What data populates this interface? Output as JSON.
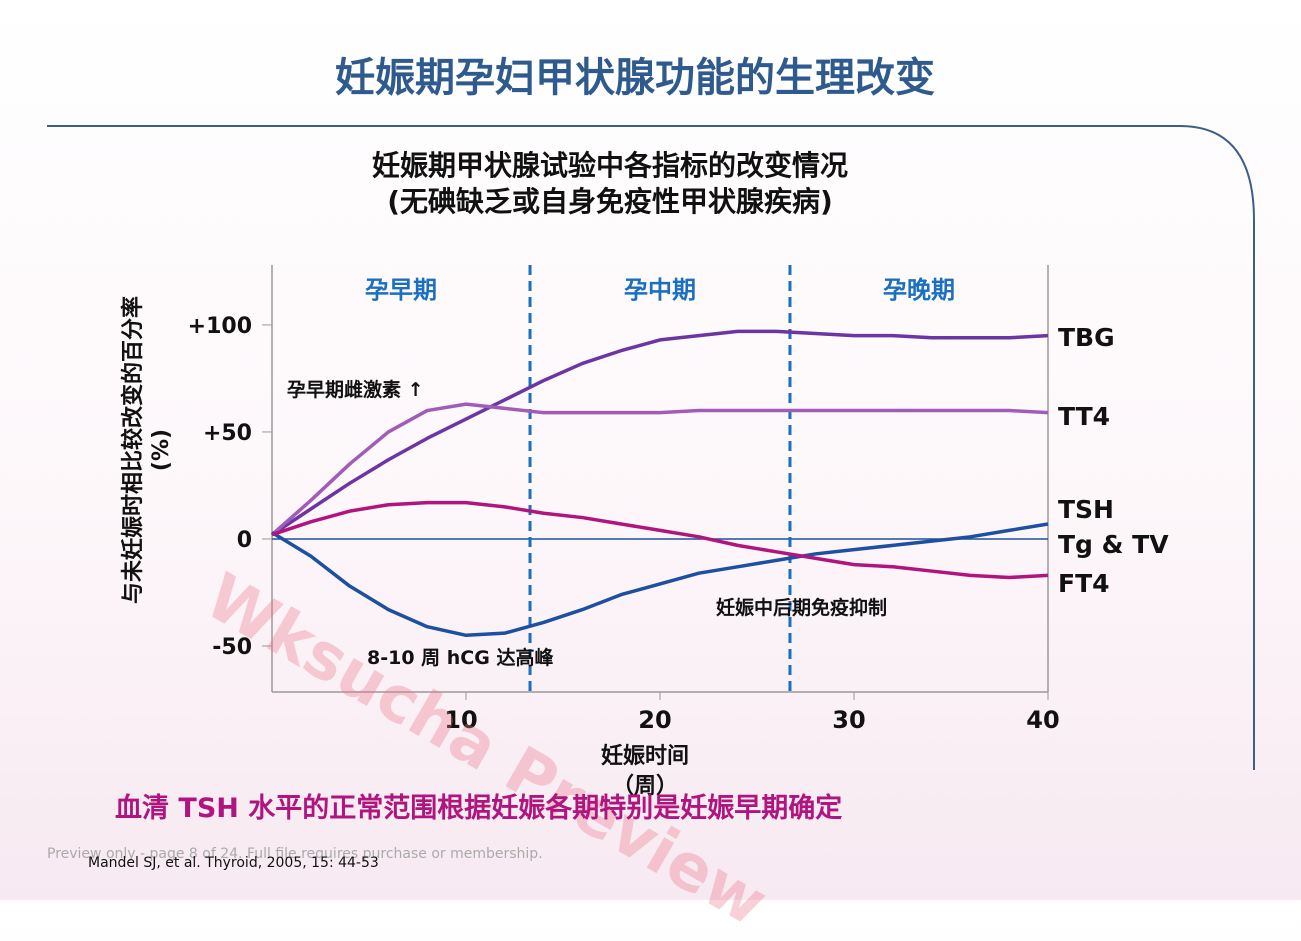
{
  "slide": {
    "title": "妊娠期孕妇甲状腺功能的生理改变",
    "chart_title": [
      "妊娠期甲状腺试验中各指标的改变情况",
      "(无碘缺乏或自身免疫性甲状腺疾病)"
    ],
    "footnote": "血清 TSH 水平的正常范围根据妊娠各期特别是妊娠早期确定",
    "citation": "Mandel SJ, et al.  Thyroid, 2005, 15: 44-53",
    "watermark": "Wksucha Preview",
    "notice": "Preview only - page 8 of 24. Full file requires purchase or membership."
  },
  "chart_data": {
    "type": "line",
    "y_label": "与未妊娠时相比较改变的百分率 (%)",
    "x_label": "妊娠时间（周）",
    "x": [
      0,
      2,
      4,
      6,
      8,
      10,
      12,
      14,
      16,
      18,
      20,
      22,
      24,
      26,
      28,
      30,
      32,
      34,
      36,
      38,
      40
    ],
    "series": [
      {
        "name": "TBG",
        "color": "#6b35a3",
        "values": [
          2,
          14,
          26,
          37,
          47,
          56,
          65,
          74,
          82,
          88,
          93,
          95,
          97,
          97,
          96,
          95,
          95,
          94,
          94,
          94,
          95
        ]
      },
      {
        "name": "TT4",
        "color": "#a05cb8",
        "values": [
          2,
          18,
          35,
          50,
          60,
          63,
          61,
          59,
          59,
          59,
          59,
          60,
          60,
          60,
          60,
          60,
          60,
          60,
          60,
          60,
          59
        ]
      },
      {
        "name": "TSH",
        "color": "#1d50a0",
        "values": [
          3,
          -8,
          -22,
          -33,
          -41,
          -45,
          -44,
          -39,
          -33,
          -26,
          -21,
          -16,
          -13,
          -10,
          -7,
          -5,
          -3,
          -1,
          1,
          4,
          7
        ]
      },
      {
        "name": "FT4",
        "color": "#b0157f",
        "values": [
          2,
          8,
          13,
          16,
          17,
          17,
          15,
          12,
          10,
          7,
          4,
          1,
          -3,
          -6,
          -9,
          -12,
          -13,
          -15,
          -17,
          -18,
          -17
        ]
      }
    ],
    "xlim": [
      0,
      40
    ],
    "xticks": [
      10,
      20,
      30,
      40
    ],
    "ylim": [
      -71.5,
      128
    ],
    "yticks": [
      {
        "value": 100,
        "label": "+100"
      },
      {
        "value": 50,
        "label": "+50"
      },
      0,
      -50
    ],
    "phases": [
      "孕早期",
      "孕中期",
      "孕晚期"
    ],
    "phase_dividers": [
      13.3,
      26.7
    ],
    "extra_label": "Tg & TV",
    "annotations": [
      "孕早期雌激素 ↑",
      "8-10 周 hCG 达高峰",
      "妊娠中后期免疫抑制"
    ]
  }
}
